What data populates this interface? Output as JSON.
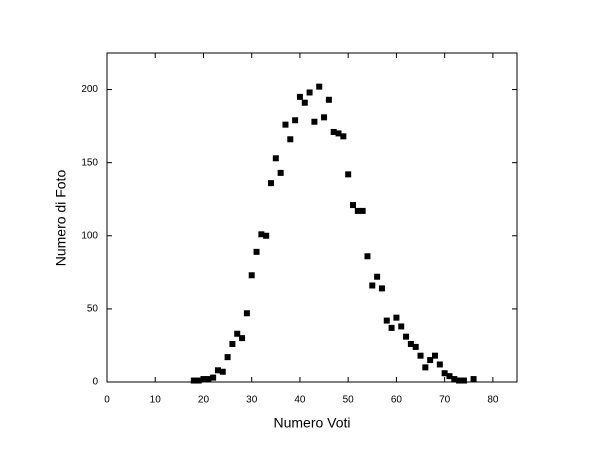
{
  "chart_data": {
    "type": "scatter",
    "x_label": "Numero Voti",
    "y_label": "Numero di Foto",
    "x": [
      18,
      19,
      20,
      21,
      22,
      23,
      24,
      25,
      26,
      27,
      28,
      29,
      30,
      31,
      32,
      33,
      34,
      35,
      36,
      37,
      38,
      39,
      40,
      41,
      42,
      43,
      44,
      45,
      46,
      47,
      48,
      49,
      50,
      51,
      52,
      53,
      54,
      55,
      56,
      57,
      58,
      59,
      60,
      61,
      62,
      63,
      64,
      65,
      66,
      67,
      68,
      69,
      70,
      71,
      72,
      73,
      74,
      76
    ],
    "values": [
      1,
      1,
      2,
      2,
      3,
      8,
      7,
      17,
      26,
      33,
      30,
      47,
      73,
      89,
      101,
      100,
      136,
      153,
      143,
      176,
      166,
      179,
      195,
      191,
      198,
      178,
      202,
      181,
      193,
      171,
      170,
      168,
      142,
      121,
      117,
      117,
      86,
      66,
      72,
      64,
      42,
      37,
      44,
      38,
      31,
      26,
      24,
      18,
      10,
      15,
      18,
      12,
      6,
      4,
      2,
      1,
      1,
      2
    ],
    "color": "#000000",
    "xlim": [
      0,
      85
    ],
    "xticks": [
      0,
      10,
      20,
      30,
      40,
      50,
      60,
      70,
      80
    ],
    "ylim": [
      0,
      225
    ],
    "yticks": [
      0,
      50,
      100,
      150,
      200
    ]
  }
}
